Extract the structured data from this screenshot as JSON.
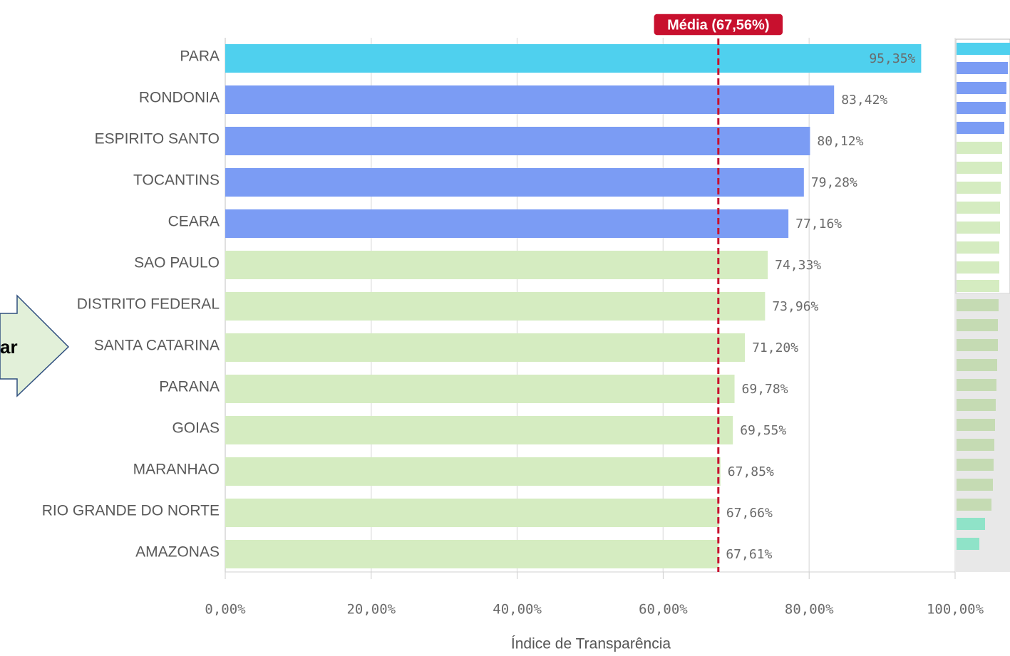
{
  "chart_data": {
    "type": "hbar",
    "categories": [
      "PARA",
      "RONDONIA",
      "ESPIRITO SANTO",
      "TOCANTINS",
      "CEARA",
      "SAO PAULO",
      "DISTRITO FEDERAL",
      "SANTA CATARINA",
      "PARANA",
      "GOIAS",
      "MARANHAO",
      "RIO GRANDE DO NORTE",
      "AMAZONAS"
    ],
    "values": [
      95.35,
      83.42,
      80.12,
      79.28,
      77.16,
      74.33,
      73.96,
      71.2,
      69.78,
      69.55,
      67.85,
      67.66,
      67.61
    ],
    "value_labels": [
      "95,35%",
      "83,42%",
      "80,12%",
      "79,28%",
      "77,16%",
      "74,33%",
      "73,96%",
      "71,20%",
      "69,78%",
      "69,55%",
      "67,85%",
      "67,66%",
      "67,61%"
    ],
    "colors": [
      "#4fd0ee",
      "#7b9cf4",
      "#7b9cf4",
      "#7b9cf4",
      "#7b9cf4",
      "#d5ecc1",
      "#d5ecc1",
      "#d5ecc1",
      "#d5ecc1",
      "#d5ecc1",
      "#d5ecc1",
      "#d5ecc1",
      "#d5ecc1"
    ],
    "xlim": [
      0,
      100
    ],
    "xticks": [
      {
        "value": 0,
        "label": "0,00%"
      },
      {
        "value": 20,
        "label": "20,00%"
      },
      {
        "value": 40,
        "label": "40,00%"
      },
      {
        "value": 60,
        "label": "60,00%"
      },
      {
        "value": 80,
        "label": "80,00%"
      },
      {
        "value": 100,
        "label": "100,00%"
      }
    ],
    "grid": true,
    "xlabel": "Índice de Transparência",
    "reference_line": {
      "value": 67.56,
      "label": "Média (67,56%)",
      "color": "#c8102e"
    },
    "annotation": "ar"
  }
}
